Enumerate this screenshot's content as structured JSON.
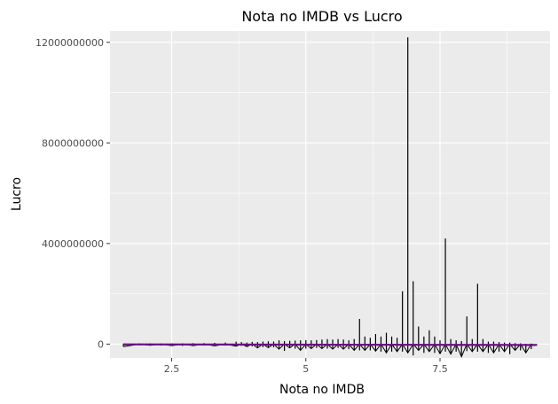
{
  "chart_data": {
    "type": "line",
    "title": "Nota no IMDB vs Lucro",
    "xlabel": "Nota no IMDB",
    "ylabel": "Lucro",
    "xlim": [
      1.35,
      9.55
    ],
    "ylim": [
      -550000000,
      12450000000
    ],
    "x_ticks": [
      2.5,
      5,
      7.5
    ],
    "x_tick_labels": [
      "2.5",
      "5",
      "7.5"
    ],
    "y_ticks": [
      0,
      4000000000,
      8000000000,
      12000000000
    ],
    "y_tick_labels": [
      "0",
      "4000000000",
      "8000000000",
      "12000000000"
    ],
    "grid": true,
    "panel_background": "#ebebeb",
    "grid_color": "#ffffff",
    "series": [
      {
        "kind": "line",
        "color": "#000000",
        "x": [
          1.6,
          1.9,
          2.1,
          2.3,
          2.5,
          2.7,
          2.9,
          3.1,
          3.3,
          3.5,
          3.7,
          3.8,
          3.9,
          4.0,
          4.1,
          4.2,
          4.3,
          4.4,
          4.5,
          4.6,
          4.7,
          4.8,
          4.9,
          5.0,
          5.1,
          5.2,
          5.3,
          5.4,
          5.5,
          5.6,
          5.7,
          5.8,
          5.9,
          6.0,
          6.1,
          6.2,
          6.3,
          6.4,
          6.5,
          6.6,
          6.7,
          6.8,
          6.9,
          7.0,
          7.1,
          7.2,
          7.3,
          7.4,
          7.5,
          7.6,
          7.7,
          7.8,
          7.9,
          8.0,
          8.1,
          8.2,
          8.3,
          8.4,
          8.5,
          8.6,
          8.7,
          8.8,
          8.9,
          9.0,
          9.1,
          9.2,
          9.3
        ],
        "y_min": [
          -100000000,
          -50000000,
          -50000000,
          -60000000,
          -60000000,
          -70000000,
          -60000000,
          -60000000,
          -70000000,
          -60000000,
          -80000000,
          -70000000,
          -100000000,
          -90000000,
          -150000000,
          -120000000,
          -140000000,
          -130000000,
          -200000000,
          -270000000,
          -150000000,
          -180000000,
          -250000000,
          -180000000,
          -180000000,
          -150000000,
          -180000000,
          -180000000,
          -200000000,
          -150000000,
          -200000000,
          -200000000,
          -250000000,
          -250000000,
          -250000000,
          -250000000,
          -280000000,
          -300000000,
          -350000000,
          -300000000,
          -300000000,
          -300000000,
          -350000000,
          -450000000,
          -250000000,
          -350000000,
          -300000000,
          -350000000,
          -380000000,
          -300000000,
          -400000000,
          -300000000,
          -500000000,
          -280000000,
          -300000000,
          -300000000,
          -300000000,
          -350000000,
          -350000000,
          -300000000,
          -300000000,
          -400000000,
          -250000000,
          -250000000,
          -350000000,
          -200000000,
          -50000000
        ],
        "y_max": [
          20000000,
          30000000,
          30000000,
          20000000,
          30000000,
          30000000,
          40000000,
          40000000,
          50000000,
          60000000,
          100000000,
          80000000,
          60000000,
          90000000,
          80000000,
          100000000,
          110000000,
          100000000,
          150000000,
          120000000,
          130000000,
          140000000,
          150000000,
          160000000,
          150000000,
          160000000,
          180000000,
          200000000,
          180000000,
          200000000,
          180000000,
          150000000,
          200000000,
          1000000000,
          300000000,
          250000000,
          400000000,
          300000000,
          450000000,
          300000000,
          250000000,
          2100000000,
          12200000000,
          2500000000,
          700000000,
          300000000,
          550000000,
          300000000,
          150000000,
          4200000000,
          200000000,
          150000000,
          120000000,
          1100000000,
          200000000,
          2400000000,
          200000000,
          100000000,
          100000000,
          80000000,
          60000000,
          60000000,
          40000000,
          30000000,
          10000000,
          20000000,
          0
        ]
      },
      {
        "kind": "trend",
        "color": "#6a0d83",
        "x": [
          1.6,
          9.3
        ],
        "y": [
          -10000000,
          -35000000
        ]
      }
    ]
  }
}
